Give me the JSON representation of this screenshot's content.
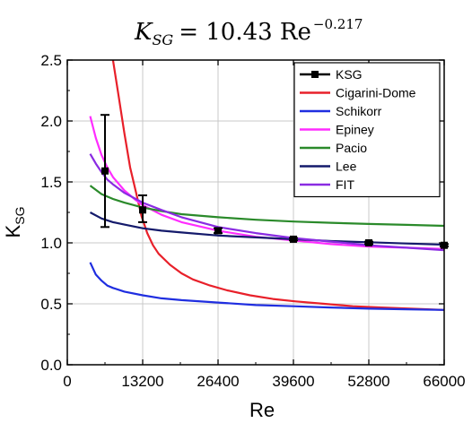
{
  "chart_data": {
    "type": "line",
    "title_equation": {
      "lhs": "K",
      "lhs_sub": "SG",
      "rhs_prefix": "= 10.43 Re",
      "exponent": "−0.217"
    },
    "xlabel": "Re",
    "ylabel": "K",
    "ylabel_sub": "SG",
    "xlim": [
      0,
      66000
    ],
    "ylim": [
      0.0,
      2.5
    ],
    "xticks": [
      0,
      13200,
      26400,
      39600,
      52800,
      66000
    ],
    "xtick_labels": [
      "0",
      "13200",
      "26400",
      "39600",
      "52800",
      "66000"
    ],
    "yticks": [
      0.0,
      0.5,
      1.0,
      1.5,
      2.0,
      2.5
    ],
    "ytick_labels": [
      "0.0",
      "0.5",
      "1.0",
      "1.5",
      "2.0",
      "2.5"
    ],
    "grid": true,
    "legend_position": "top-right",
    "series": [
      {
        "name": "KSG",
        "kind": "points_with_errorbars",
        "color": "#000000",
        "points": [
          {
            "x": 6600,
            "y": 1.59,
            "ylow": 1.13,
            "yhigh": 2.05
          },
          {
            "x": 13200,
            "y": 1.27,
            "ylow": 1.17,
            "yhigh": 1.39
          },
          {
            "x": 26400,
            "y": 1.1,
            "ylow": 1.08,
            "yhigh": 1.12
          },
          {
            "x": 39600,
            "y": 1.03,
            "ylow": 1.02,
            "yhigh": 1.04
          },
          {
            "x": 52800,
            "y": 1.0,
            "ylow": 0.99,
            "yhigh": 1.01
          },
          {
            "x": 66000,
            "y": 0.98,
            "ylow": 0.97,
            "yhigh": 0.99
          }
        ]
      },
      {
        "name": "Cigarini-Dome",
        "kind": "line",
        "color": "#e8202a",
        "x": [
          8000,
          9000,
          10000,
          11000,
          12000,
          13000,
          14000,
          15000,
          16000,
          18000,
          20000,
          22000,
          25000,
          28000,
          32000,
          36000,
          40000,
          45000,
          50000,
          55000,
          60000,
          66000
        ],
        "y": [
          2.5,
          2.2,
          1.9,
          1.62,
          1.42,
          1.22,
          1.08,
          0.98,
          0.91,
          0.82,
          0.75,
          0.7,
          0.65,
          0.61,
          0.57,
          0.54,
          0.52,
          0.5,
          0.48,
          0.47,
          0.46,
          0.45
        ]
      },
      {
        "name": "Schikorr",
        "kind": "line",
        "color": "#1f2ee0",
        "x": [
          4000,
          5000,
          6000,
          7000,
          8000,
          10000,
          13200,
          16500,
          20000,
          26400,
          33000,
          39600,
          46000,
          52800,
          59400,
          66000
        ],
        "y": [
          0.84,
          0.74,
          0.69,
          0.65,
          0.63,
          0.6,
          0.57,
          0.545,
          0.53,
          0.51,
          0.49,
          0.48,
          0.47,
          0.46,
          0.455,
          0.45
        ]
      },
      {
        "name": "Epiney",
        "kind": "line",
        "color": "#ff2cff",
        "x": [
          4000,
          5000,
          6000,
          7000,
          8000,
          10000,
          12000,
          13200,
          16500,
          20000,
          26400,
          33000,
          39600,
          46200,
          52800,
          59400,
          66000
        ],
        "y": [
          2.04,
          1.86,
          1.72,
          1.62,
          1.54,
          1.43,
          1.35,
          1.31,
          1.23,
          1.17,
          1.1,
          1.05,
          1.02,
          0.99,
          0.97,
          0.96,
          0.95
        ]
      },
      {
        "name": "Pacio",
        "kind": "line",
        "color": "#2a8a2a",
        "x": [
          4000,
          6000,
          8000,
          10000,
          13200,
          16500,
          20000,
          26400,
          33000,
          39600,
          46200,
          52800,
          59400,
          66000
        ],
        "y": [
          1.47,
          1.4,
          1.36,
          1.33,
          1.29,
          1.26,
          1.235,
          1.21,
          1.19,
          1.175,
          1.165,
          1.155,
          1.148,
          1.14
        ]
      },
      {
        "name": "Lee",
        "kind": "line",
        "color": "#141a6b",
        "x": [
          4000,
          6000,
          8000,
          10000,
          13200,
          16500,
          20000,
          26400,
          33000,
          39600,
          46200,
          52800,
          59400,
          66000
        ],
        "y": [
          1.25,
          1.2,
          1.17,
          1.15,
          1.12,
          1.1,
          1.085,
          1.06,
          1.045,
          1.03,
          1.015,
          1.005,
          0.995,
          0.985
        ]
      },
      {
        "name": "FIT",
        "kind": "line",
        "color": "#8a2be2",
        "x": [
          4000,
          5000,
          6000,
          7000,
          8000,
          10000,
          12000,
          13200,
          16500,
          20000,
          26400,
          33000,
          39600,
          46200,
          52800,
          59400,
          66000
        ],
        "y": [
          1.73,
          1.65,
          1.58,
          1.52,
          1.48,
          1.41,
          1.36,
          1.33,
          1.27,
          1.21,
          1.13,
          1.08,
          1.04,
          1.01,
          0.98,
          0.96,
          0.94
        ]
      }
    ]
  }
}
